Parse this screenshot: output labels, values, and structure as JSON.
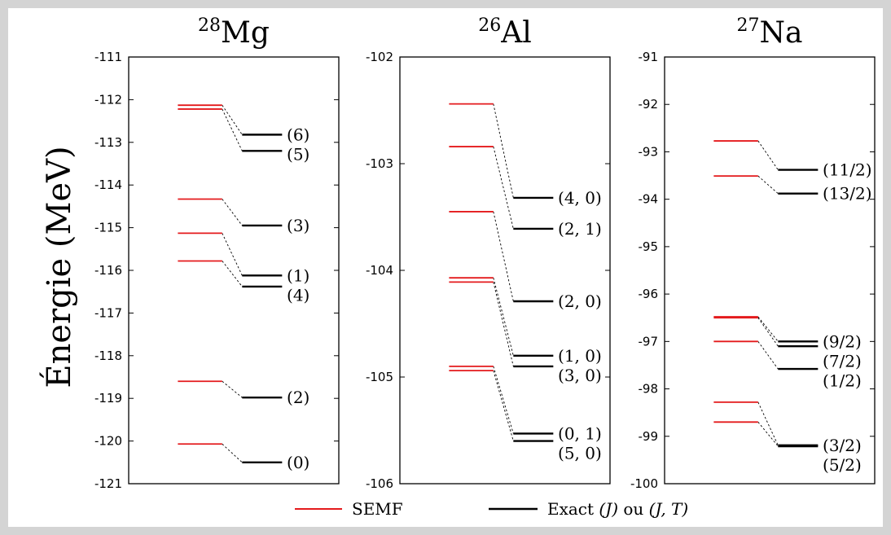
{
  "colors": {
    "semf": "#e41a1c",
    "exact": "#000000",
    "connector": "#000000"
  },
  "ylabel": "Énergie (MeV)",
  "legend": {
    "semf_label": "SEMF",
    "exact_label_prefix": "Exact",
    "exact_label_j": "(J)",
    "exact_label_mid": "ou",
    "exact_label_jt": "(J, T)"
  },
  "chart_data": [
    {
      "type": "level-scheme",
      "title_mass": "28",
      "title_element": "Mg",
      "ylim": [
        -121,
        -111
      ],
      "yticks": [
        -111,
        -112,
        -113,
        -114,
        -115,
        -116,
        -117,
        -118,
        -119,
        -120,
        -121
      ],
      "semf": [
        -112.13,
        -112.22,
        -114.33,
        -115.13,
        -115.78,
        -118.6,
        -120.07
      ],
      "exact": [
        {
          "label": "(6)",
          "value": -112.82
        },
        {
          "label": "(5)",
          "value": -113.2
        },
        {
          "label": "(3)",
          "value": -114.95
        },
        {
          "label": "(1)",
          "value": -116.12
        },
        {
          "label": "(4)",
          "value": -116.38
        },
        {
          "label": "(2)",
          "value": -118.98
        },
        {
          "label": "(0)",
          "value": -120.5
        }
      ]
    },
    {
      "type": "level-scheme",
      "title_mass": "26",
      "title_element": "Al",
      "ylim": [
        -106,
        -102
      ],
      "yticks": [
        -102,
        -103,
        -104,
        -105,
        -106
      ],
      "semf": [
        -102.44,
        -102.84,
        -103.45,
        -104.07,
        -104.11,
        -104.9,
        -104.94
      ],
      "exact": [
        {
          "label": "(4, 0)",
          "value": -103.32
        },
        {
          "label": "(2, 1)",
          "value": -103.61
        },
        {
          "label": "(2, 0)",
          "value": -104.29
        },
        {
          "label": "(1, 0)",
          "value": -104.8
        },
        {
          "label": "(3, 0)",
          "value": -104.9
        },
        {
          "label": "(0, 1)",
          "value": -105.53
        },
        {
          "label": "(5, 0)",
          "value": -105.6
        }
      ]
    },
    {
      "type": "level-scheme",
      "title_mass": "27",
      "title_element": "Na",
      "ylim": [
        -100,
        -91
      ],
      "yticks": [
        -91,
        -92,
        -93,
        -94,
        -95,
        -96,
        -97,
        -98,
        -99,
        -100
      ],
      "semf": [
        -92.77,
        -93.51,
        -96.48,
        -96.5,
        -97.0,
        -98.28,
        -98.7
      ],
      "exact": [
        {
          "label": "(11/2)",
          "value": -93.38
        },
        {
          "label": "(13/2)",
          "value": -93.88
        },
        {
          "label": "(9/2)",
          "value": -97.0
        },
        {
          "label": "(7/2)",
          "value": -97.1
        },
        {
          "label": "(1/2)",
          "value": -97.58
        },
        {
          "label": "(3/2)",
          "value": -99.19
        },
        {
          "label": "(5/2)",
          "value": -99.21
        }
      ]
    }
  ]
}
